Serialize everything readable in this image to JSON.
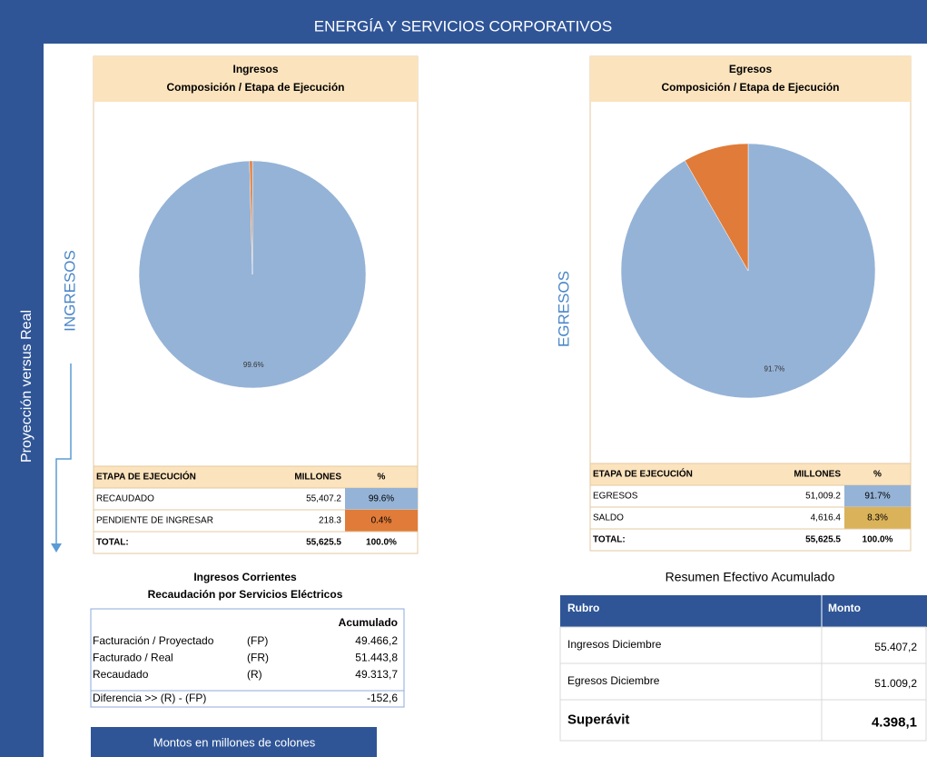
{
  "header": {
    "title": "ENERGÍA Y SERVICIOS CORPORATIVOS"
  },
  "side_label": "Proyección versus Real",
  "footer": "Montos en millones de colones",
  "chart_data": [
    {
      "type": "pie",
      "section_label": "INGRESOS",
      "title": "Ingresos",
      "subtitle": "Composición / Etapa de Ejecución",
      "values": [
        99.6,
        0.4
      ],
      "value_labels": [
        "99.6%",
        null
      ],
      "colors": [
        "#95b3d7",
        "#e07b39"
      ],
      "table": {
        "columns": [
          "ETAPA DE EJECUCIÓN",
          "MILLONES",
          "%"
        ],
        "rows": [
          [
            "RECAUDADO",
            "55,407.2",
            "99.6%"
          ],
          [
            "PENDIENTE DE INGRESAR",
            "218.3",
            "0.4%"
          ]
        ],
        "total": [
          "TOTAL:",
          "55,625.5",
          "100.0%"
        ],
        "cell_colors": [
          "#95b3d7",
          "#e07b39"
        ]
      }
    },
    {
      "type": "pie",
      "section_label": "EGRESOS",
      "title": "Egresos",
      "subtitle": "Composición / Etapa de Ejecución",
      "values": [
        91.7,
        8.3
      ],
      "value_labels": [
        "91.7%",
        null
      ],
      "colors": [
        "#95b3d7",
        "#e07b39"
      ],
      "table": {
        "columns": [
          "ETAPA DE EJECUCIÓN",
          "MILLONES",
          "%"
        ],
        "rows": [
          [
            "EGRESOS",
            "51,009.2",
            "91.7%"
          ],
          [
            "SALDO",
            "4,616.4",
            "8.3%"
          ]
        ],
        "total": [
          "TOTAL:",
          "55,625.5",
          "100.0%"
        ],
        "cell_colors": [
          "#95b3d7",
          "#d9b25a"
        ]
      }
    }
  ],
  "ingresos_corrientes": {
    "title": "Ingresos Corrientes",
    "subtitle": "Recaudación por Servicios Eléctricos",
    "column": "Acumulado",
    "rows": [
      [
        "Facturación / Proyectado",
        "(FP)",
        "49.466,2"
      ],
      [
        "Facturado / Real",
        "(FR)",
        "51.443,8"
      ],
      [
        "Recaudado",
        "(R)",
        "49.313,7"
      ]
    ],
    "difference": [
      "Diferencia  >> (R) - (FP)",
      "-152,6"
    ]
  },
  "resumen": {
    "title": "Resumen Efectivo Acumulado",
    "columns": [
      "Rubro",
      "Monto"
    ],
    "rows": [
      [
        "Ingresos Diciembre",
        "55.407,2"
      ],
      [
        "Egresos Diciembre",
        "51.009,2"
      ],
      [
        "Superávit",
        "4.398,1"
      ]
    ]
  }
}
